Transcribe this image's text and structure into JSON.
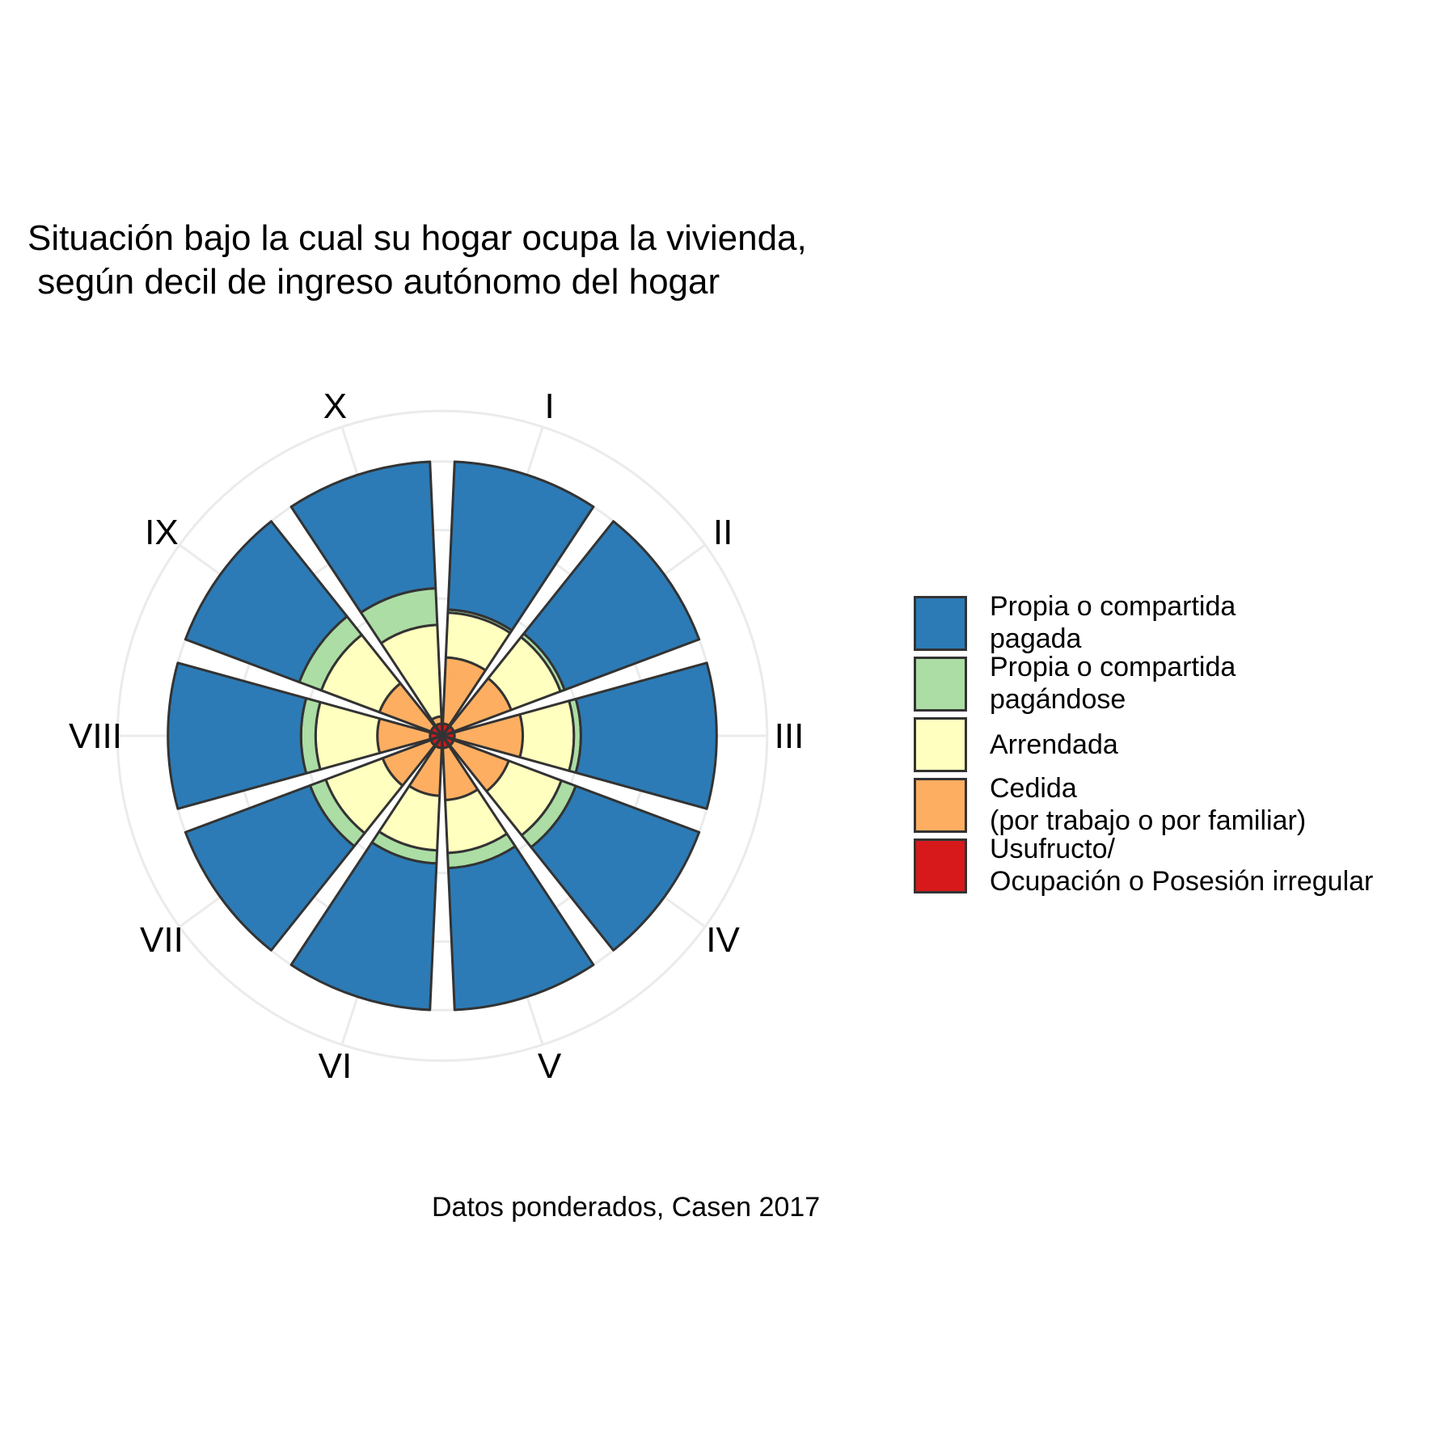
{
  "title": "Situación bajo la cual su hogar ocupa la vivienda,\n según decil de ingreso autónomo del hogar",
  "caption": "Datos ponderados, Casen 2017",
  "chart_data": {
    "type": "bar",
    "coord": "polar",
    "stacked": true,
    "categories": [
      "I",
      "II",
      "III",
      "IV",
      "V",
      "VI",
      "VII",
      "VIII",
      "IX",
      "X"
    ],
    "series": [
      {
        "name": "Usufructo/\nOcupación o Posesión irregular",
        "color": "#d7191c",
        "values": [
          0.2,
          0.2,
          0.2,
          0.2,
          0.2,
          0.2,
          0.2,
          0.2,
          0.2,
          0.2
        ]
      },
      {
        "name": "Cedida\n(por trabajo o por familiar)",
        "color": "#fdae61",
        "values": [
          8.0,
          7.0,
          8.4,
          6.5,
          5.3,
          4.6,
          5.2,
          5.4,
          5.8,
          0.3
        ]
      },
      {
        "name": "Arrendada",
        "color": "#ffffbf",
        "values": [
          12.0,
          14.0,
          14.4,
          14.8,
          12.8,
          12.7,
          15.2,
          15.7,
          16.2,
          15.9
        ]
      },
      {
        "name": "Propia o compartida\npagándose",
        "color": "#abdda4",
        "values": [
          1.0,
          1.5,
          2.5,
          5.5,
          5.0,
          4.2,
          5.9,
          5.2,
          8.8,
          12.6
        ]
      },
      {
        "name": "Propia o compartida\npagada",
        "color": "#2c7bb6",
        "values": [
          78.8,
          77.3,
          74.5,
          73.0,
          76.7,
          78.3,
          73.5,
          73.5,
          69.0,
          71.0
        ]
      }
    ],
    "legend_position": "right",
    "grid": true
  }
}
